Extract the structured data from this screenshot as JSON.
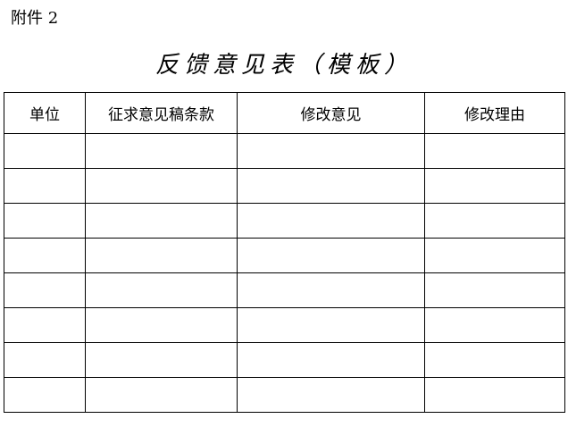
{
  "attachment_label": "附件 2",
  "title": "反馈意见表（模板）",
  "table": {
    "headers": [
      "单位",
      "征求意见稿条款",
      "修改意见",
      "修改理由"
    ],
    "rows": [
      [
        "",
        "",
        "",
        ""
      ],
      [
        "",
        "",
        "",
        ""
      ],
      [
        "",
        "",
        "",
        ""
      ],
      [
        "",
        "",
        "",
        ""
      ],
      [
        "",
        "",
        "",
        ""
      ],
      [
        "",
        "",
        "",
        ""
      ],
      [
        "",
        "",
        "",
        ""
      ],
      [
        "",
        "",
        "",
        ""
      ]
    ]
  }
}
